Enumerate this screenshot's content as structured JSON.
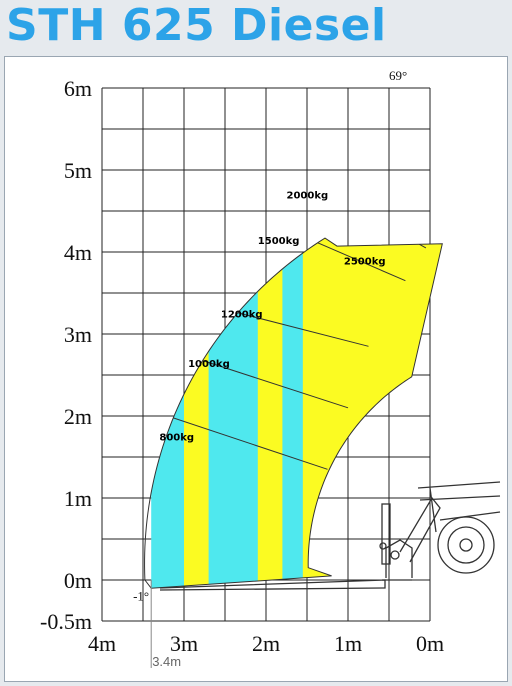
{
  "title": "STH 625 Diesel",
  "colors": {
    "title": "#2ca3e8",
    "cyan": "#4fe8ee",
    "yellow": "#fbfb22",
    "grid": "#222222",
    "background": "#e6eaee"
  },
  "chart_data": {
    "type": "load-chart",
    "title": "STH 625 Diesel",
    "x_axis": {
      "ticks": [
        "4m",
        "3m",
        "2m",
        "1m",
        "0m"
      ],
      "tick_values": [
        4,
        3,
        2,
        1,
        0
      ],
      "range": [
        4,
        0
      ],
      "marker": "3.4m",
      "marker_value": 3.4
    },
    "y_axis": {
      "ticks": [
        "6m",
        "5m",
        "4m",
        "3m",
        "2m",
        "1m",
        "0m",
        "-0.5m"
      ],
      "tick_values": [
        6,
        5,
        4,
        3,
        2,
        1,
        0,
        -0.5
      ]
    },
    "angles": {
      "max": "69°",
      "min": "-1°"
    },
    "zones": [
      {
        "label": "800kg",
        "load_kg": 800,
        "x_range": [
          3.4,
          3.0
        ],
        "color": "cyan"
      },
      {
        "label": "1000kg",
        "load_kg": 1000,
        "x_range": [
          3.0,
          2.7
        ],
        "color": "yellow"
      },
      {
        "label": "1200kg",
        "load_kg": 1200,
        "x_range": [
          2.7,
          2.1
        ],
        "color": "cyan"
      },
      {
        "label": "1500kg",
        "load_kg": 1500,
        "x_range": [
          2.1,
          1.8
        ],
        "color": "yellow"
      },
      {
        "label": "2000kg",
        "load_kg": 2000,
        "x_range": [
          1.8,
          1.55
        ],
        "color": "cyan"
      },
      {
        "label": "2500kg",
        "load_kg": 2500,
        "x_range": [
          1.55,
          0.2
        ],
        "color": "yellow"
      }
    ],
    "grid": true
  }
}
